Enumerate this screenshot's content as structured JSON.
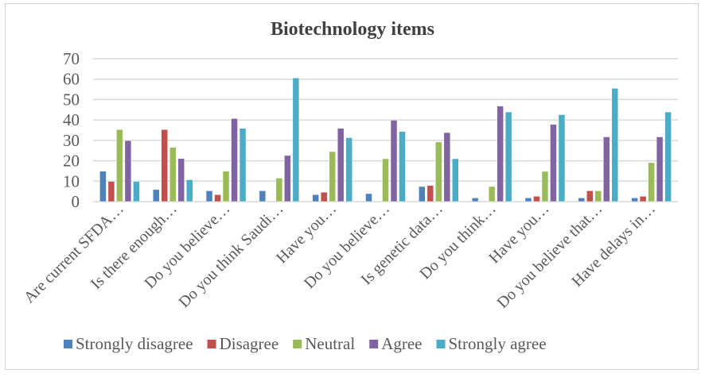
{
  "chart_data": {
    "type": "bar",
    "title": "Biotechnology items",
    "xlabel": "",
    "ylabel": "",
    "ylim": [
      0,
      70
    ],
    "yticks": [
      0,
      10,
      20,
      30,
      40,
      50,
      60,
      70
    ],
    "grid": true,
    "legend_position": "bottom",
    "categories": [
      "Are current SFDA…",
      "Is there enough…",
      "Do you believe…",
      "Do you think Saudi…",
      "Have you…",
      "Do you believe…",
      "Is genetic data…",
      "Do you think…",
      "Have you…",
      "Do you believe that…",
      "Have delays in…"
    ],
    "series": [
      {
        "name": "Strongly disagree",
        "color": "#4f81bd",
        "values": [
          14.9,
          5.9,
          5.3,
          5.3,
          3.4,
          3.9,
          7.4,
          1.8,
          1.8,
          1.8,
          1.8
        ]
      },
      {
        "name": "Disagree",
        "color": "#c0504d",
        "values": [
          9.9,
          35.3,
          3.4,
          0,
          4.6,
          0,
          7.9,
          0,
          2.6,
          5.3,
          2.6
        ]
      },
      {
        "name": "Neutral",
        "color": "#9bbb59",
        "values": [
          35.3,
          26.6,
          14.9,
          11.5,
          24.5,
          21.0,
          29.2,
          7.4,
          14.8,
          5.3,
          19.1
        ]
      },
      {
        "name": "Agree",
        "color": "#8064a2",
        "values": [
          29.9,
          21.1,
          40.7,
          22.6,
          35.9,
          39.9,
          33.8,
          46.8,
          37.8,
          31.7,
          31.7
        ]
      },
      {
        "name": "Strongly agree",
        "color": "#4bacc6",
        "values": [
          9.9,
          10.7,
          35.9,
          60.6,
          31.3,
          34.4,
          21.0,
          43.9,
          42.6,
          55.5,
          43.9
        ]
      }
    ]
  }
}
